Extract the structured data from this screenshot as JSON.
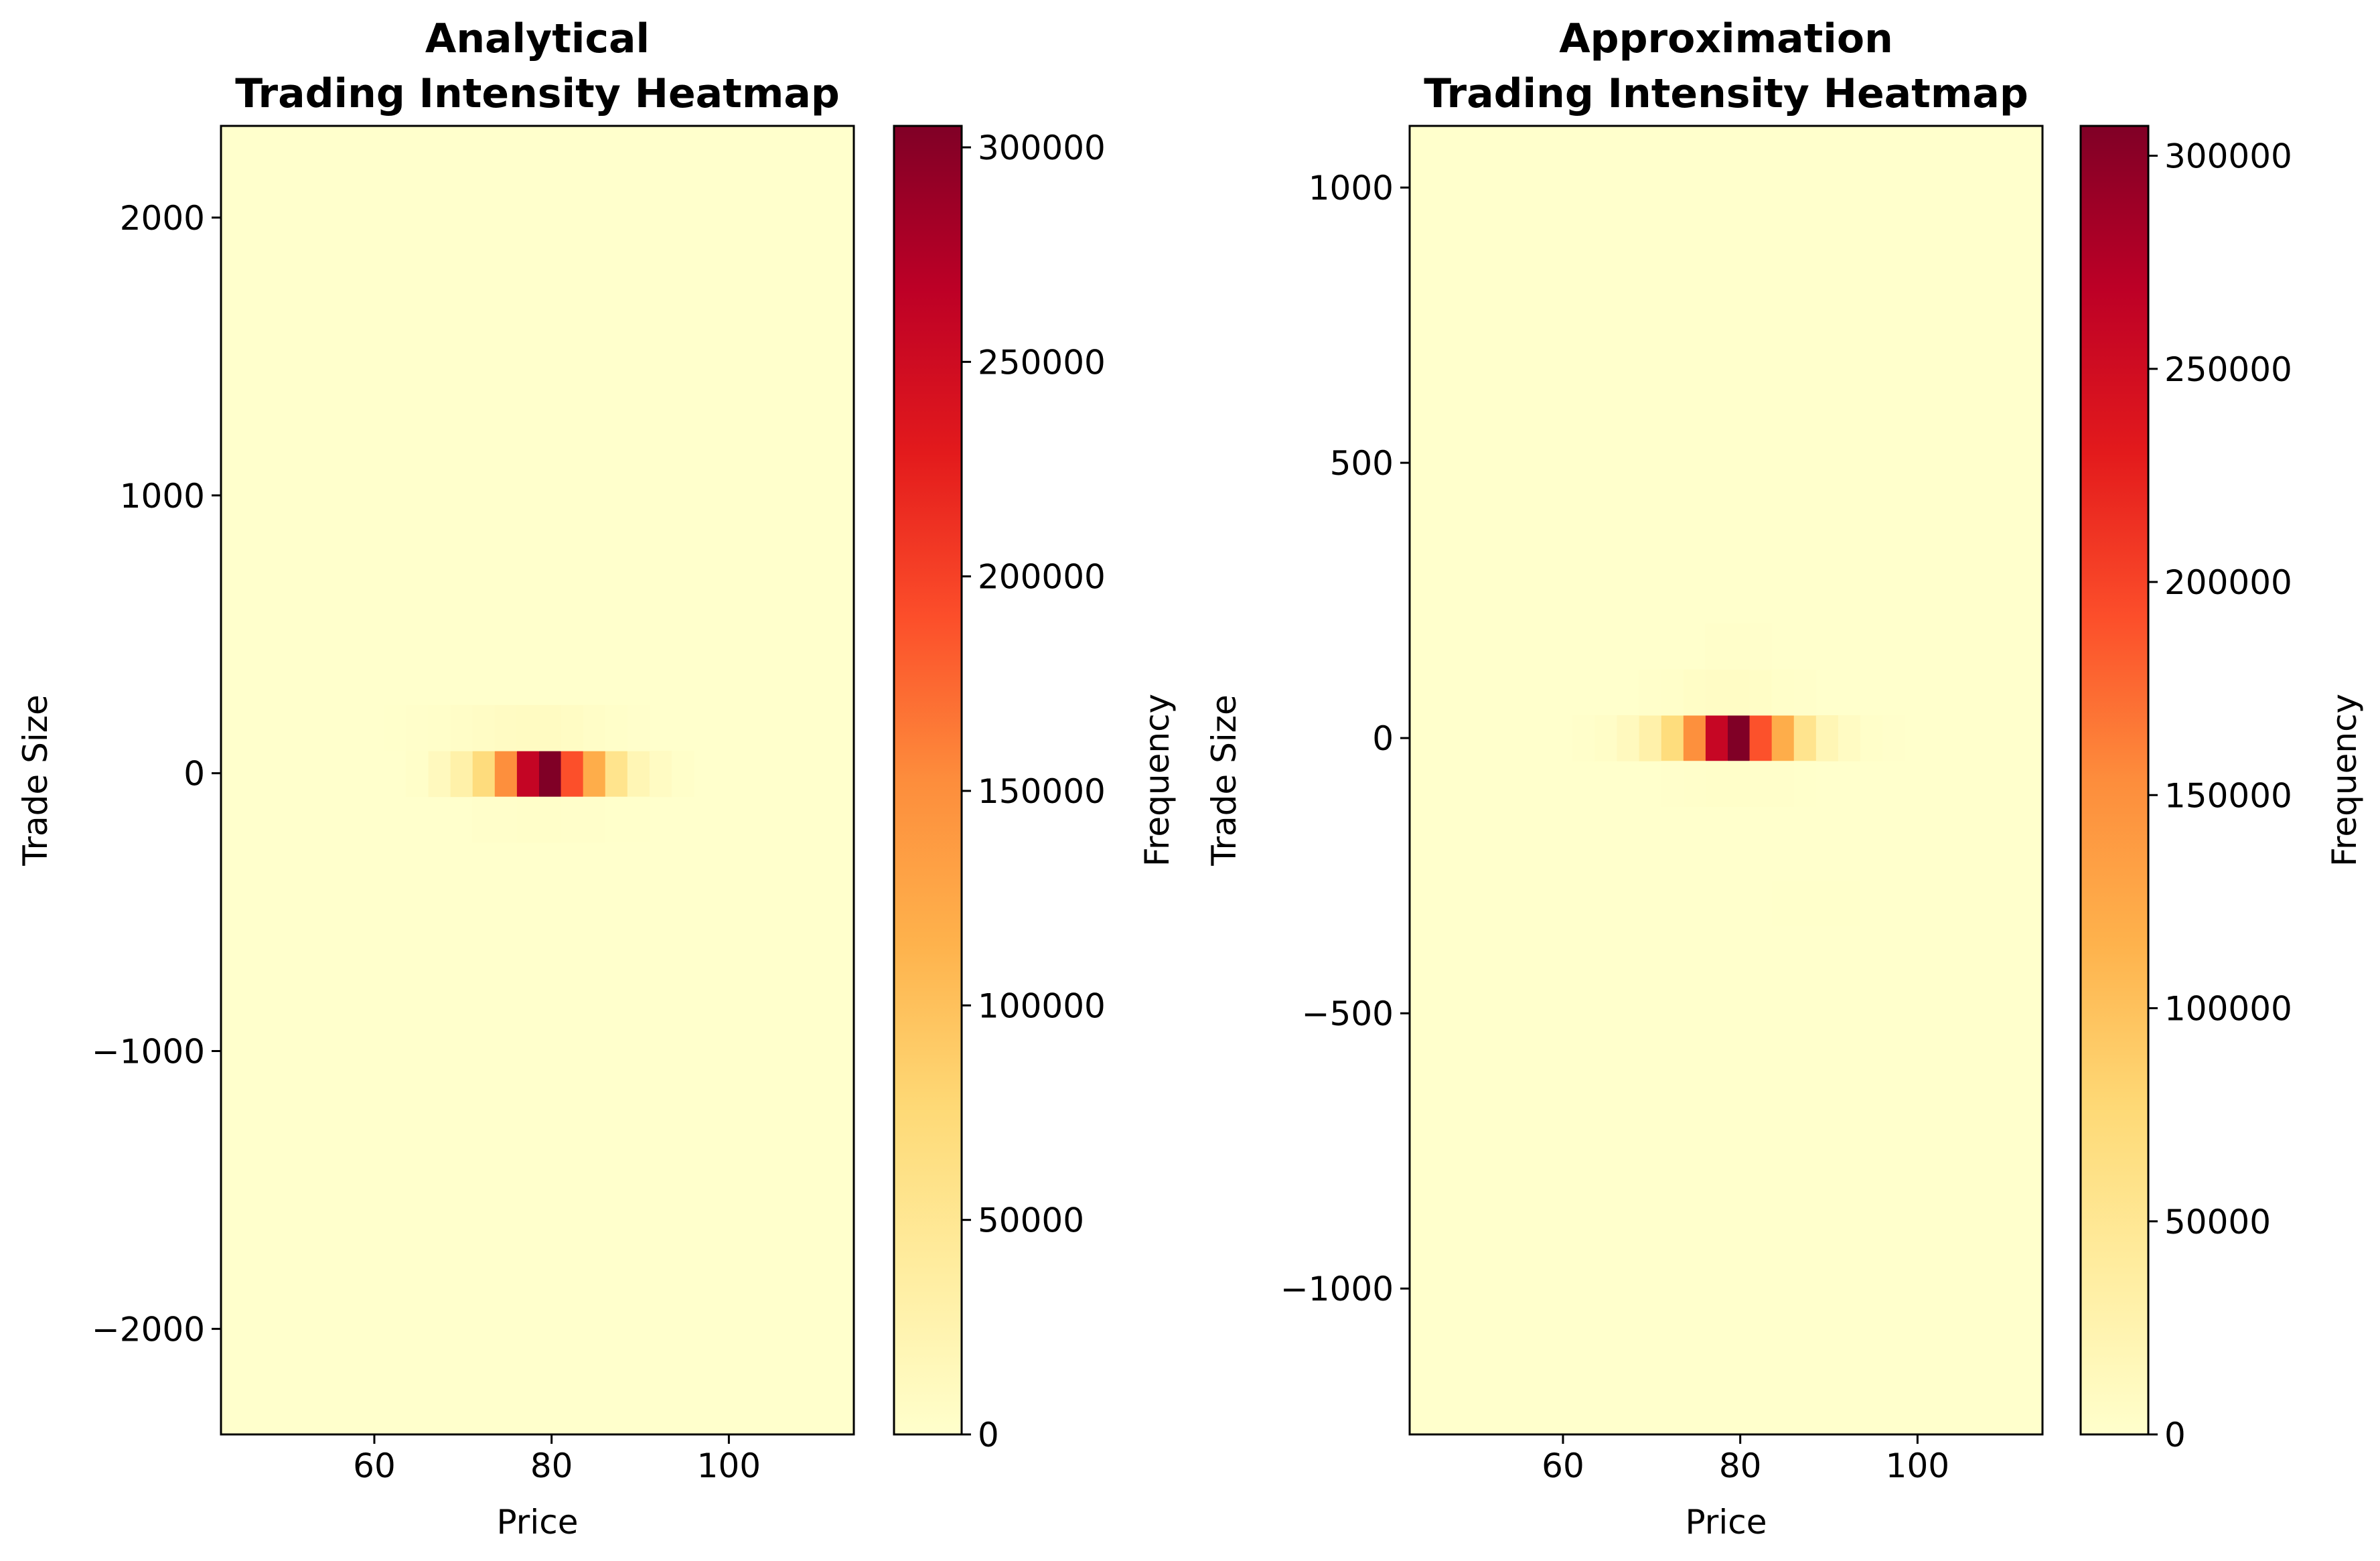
{
  "chart_data": [
    {
      "type": "heatmap",
      "title_lines": [
        "Analytical",
        "Trading Intensity Heatmap"
      ],
      "xlabel": "Price",
      "ylabel": "Trade Size",
      "xlim": [
        42.7,
        114.1
      ],
      "ylim": [
        -2380,
        2330
      ],
      "xticks": [
        60,
        80,
        100
      ],
      "yticks": [
        2000,
        1000,
        0,
        -1000,
        -2000
      ],
      "ytick_labels": [
        "2000",
        "1000",
        "0",
        "−1000",
        "−2000"
      ],
      "colorbar": {
        "label": "Frequency",
        "range": [
          0,
          305000
        ],
        "ticks": [
          0,
          50000,
          100000,
          150000,
          200000,
          250000,
          300000
        ],
        "tick_labels": [
          "0",
          "50000",
          "100000",
          "150000",
          "200000",
          "250000",
          "300000"
        ]
      },
      "colormap": "YlOrRd",
      "background_color": "#ffffcc",
      "bin_width_x": 2.5,
      "bin_height_y": 165,
      "cells": [
        [
          79.8,
          -2,
          305000
        ],
        [
          77.3,
          -2,
          260000
        ],
        [
          82.3,
          -2,
          190000
        ],
        [
          74.8,
          -2,
          150000
        ],
        [
          84.8,
          -2,
          120000
        ],
        [
          72.3,
          -2,
          70000
        ],
        [
          87.3,
          -2,
          55000
        ],
        [
          69.8,
          -2,
          30000
        ],
        [
          89.8,
          -2,
          20000
        ],
        [
          67.3,
          -2,
          12000
        ],
        [
          92.3,
          -2,
          8000
        ],
        [
          64.8,
          -2,
          3000
        ],
        [
          94.8,
          -2,
          2500
        ],
        [
          72.3,
          163,
          6000
        ],
        [
          74.8,
          163,
          8000
        ],
        [
          77.3,
          163,
          9000
        ],
        [
          79.8,
          163,
          9000
        ],
        [
          82.3,
          163,
          7000
        ],
        [
          69.8,
          163,
          4000
        ],
        [
          84.8,
          163,
          4000
        ],
        [
          67.3,
          163,
          2500
        ],
        [
          87.3,
          163,
          2500
        ],
        [
          64.8,
          163,
          1500
        ],
        [
          62.3,
          163,
          1000
        ],
        [
          89.8,
          163,
          1200
        ],
        [
          77.3,
          -167,
          2500
        ],
        [
          79.8,
          -167,
          2500
        ],
        [
          74.8,
          -167,
          2000
        ],
        [
          82.3,
          -167,
          2000
        ],
        [
          84.8,
          -167,
          1500
        ],
        [
          72.3,
          -167,
          1500
        ],
        [
          87.3,
          -167,
          1000
        ],
        [
          89.8,
          -167,
          800
        ]
      ]
    },
    {
      "type": "heatmap",
      "title_lines": [
        "Approximation",
        "Trading Intensity Heatmap"
      ],
      "xlabel": "Price",
      "ylabel": "Trade Size",
      "xlim": [
        42.7,
        114.1
      ],
      "ylim": [
        -1265,
        1112
      ],
      "xticks": [
        60,
        80,
        100
      ],
      "yticks": [
        1000,
        500,
        0,
        -500,
        -1000
      ],
      "ytick_labels": [
        "1000",
        "500",
        "0",
        "−500",
        "−1000"
      ],
      "colorbar": {
        "label": "Frequency",
        "range": [
          0,
          307000
        ],
        "ticks": [
          0,
          50000,
          100000,
          150000,
          200000,
          250000,
          300000
        ],
        "tick_labels": [
          "0",
          "50000",
          "100000",
          "150000",
          "200000",
          "250000",
          "300000"
        ]
      },
      "colormap": "YlOrRd",
      "background_color": "#ffffcc",
      "bin_width_x": 2.5,
      "bin_height_y": 83,
      "cells": [
        [
          79.8,
          0,
          307000
        ],
        [
          77.3,
          0,
          260000
        ],
        [
          82.3,
          0,
          190000
        ],
        [
          74.8,
          0,
          150000
        ],
        [
          84.8,
          0,
          120000
        ],
        [
          72.3,
          0,
          70000
        ],
        [
          87.3,
          0,
          55000
        ],
        [
          69.8,
          0,
          30000
        ],
        [
          89.8,
          0,
          20000
        ],
        [
          67.3,
          0,
          12000
        ],
        [
          92.3,
          0,
          8000
        ],
        [
          64.8,
          0,
          4000
        ],
        [
          94.8,
          0,
          3000
        ],
        [
          62.3,
          0,
          1500
        ],
        [
          97.3,
          0,
          1200
        ],
        [
          74.8,
          83,
          5000
        ],
        [
          77.3,
          83,
          6000
        ],
        [
          79.8,
          83,
          6000
        ],
        [
          82.3,
          83,
          5000
        ],
        [
          72.3,
          83,
          3000
        ],
        [
          84.8,
          83,
          3000
        ],
        [
          69.8,
          83,
          2000
        ],
        [
          87.3,
          83,
          2000
        ],
        [
          77.3,
          166,
          1500
        ],
        [
          79.8,
          166,
          1500
        ],
        [
          82.3,
          166,
          1200
        ],
        [
          77.3,
          -83,
          3000
        ],
        [
          79.8,
          -83,
          3000
        ],
        [
          74.8,
          -83,
          2000
        ],
        [
          82.3,
          -83,
          2000
        ],
        [
          84.8,
          -83,
          1500
        ],
        [
          72.3,
          -83,
          1200
        ],
        [
          87.3,
          -83,
          1000
        ],
        [
          84.8,
          -300,
          800
        ],
        [
          87.3,
          -300,
          800
        ],
        [
          89.8,
          -300,
          800
        ],
        [
          92.3,
          -300,
          600
        ]
      ]
    }
  ]
}
